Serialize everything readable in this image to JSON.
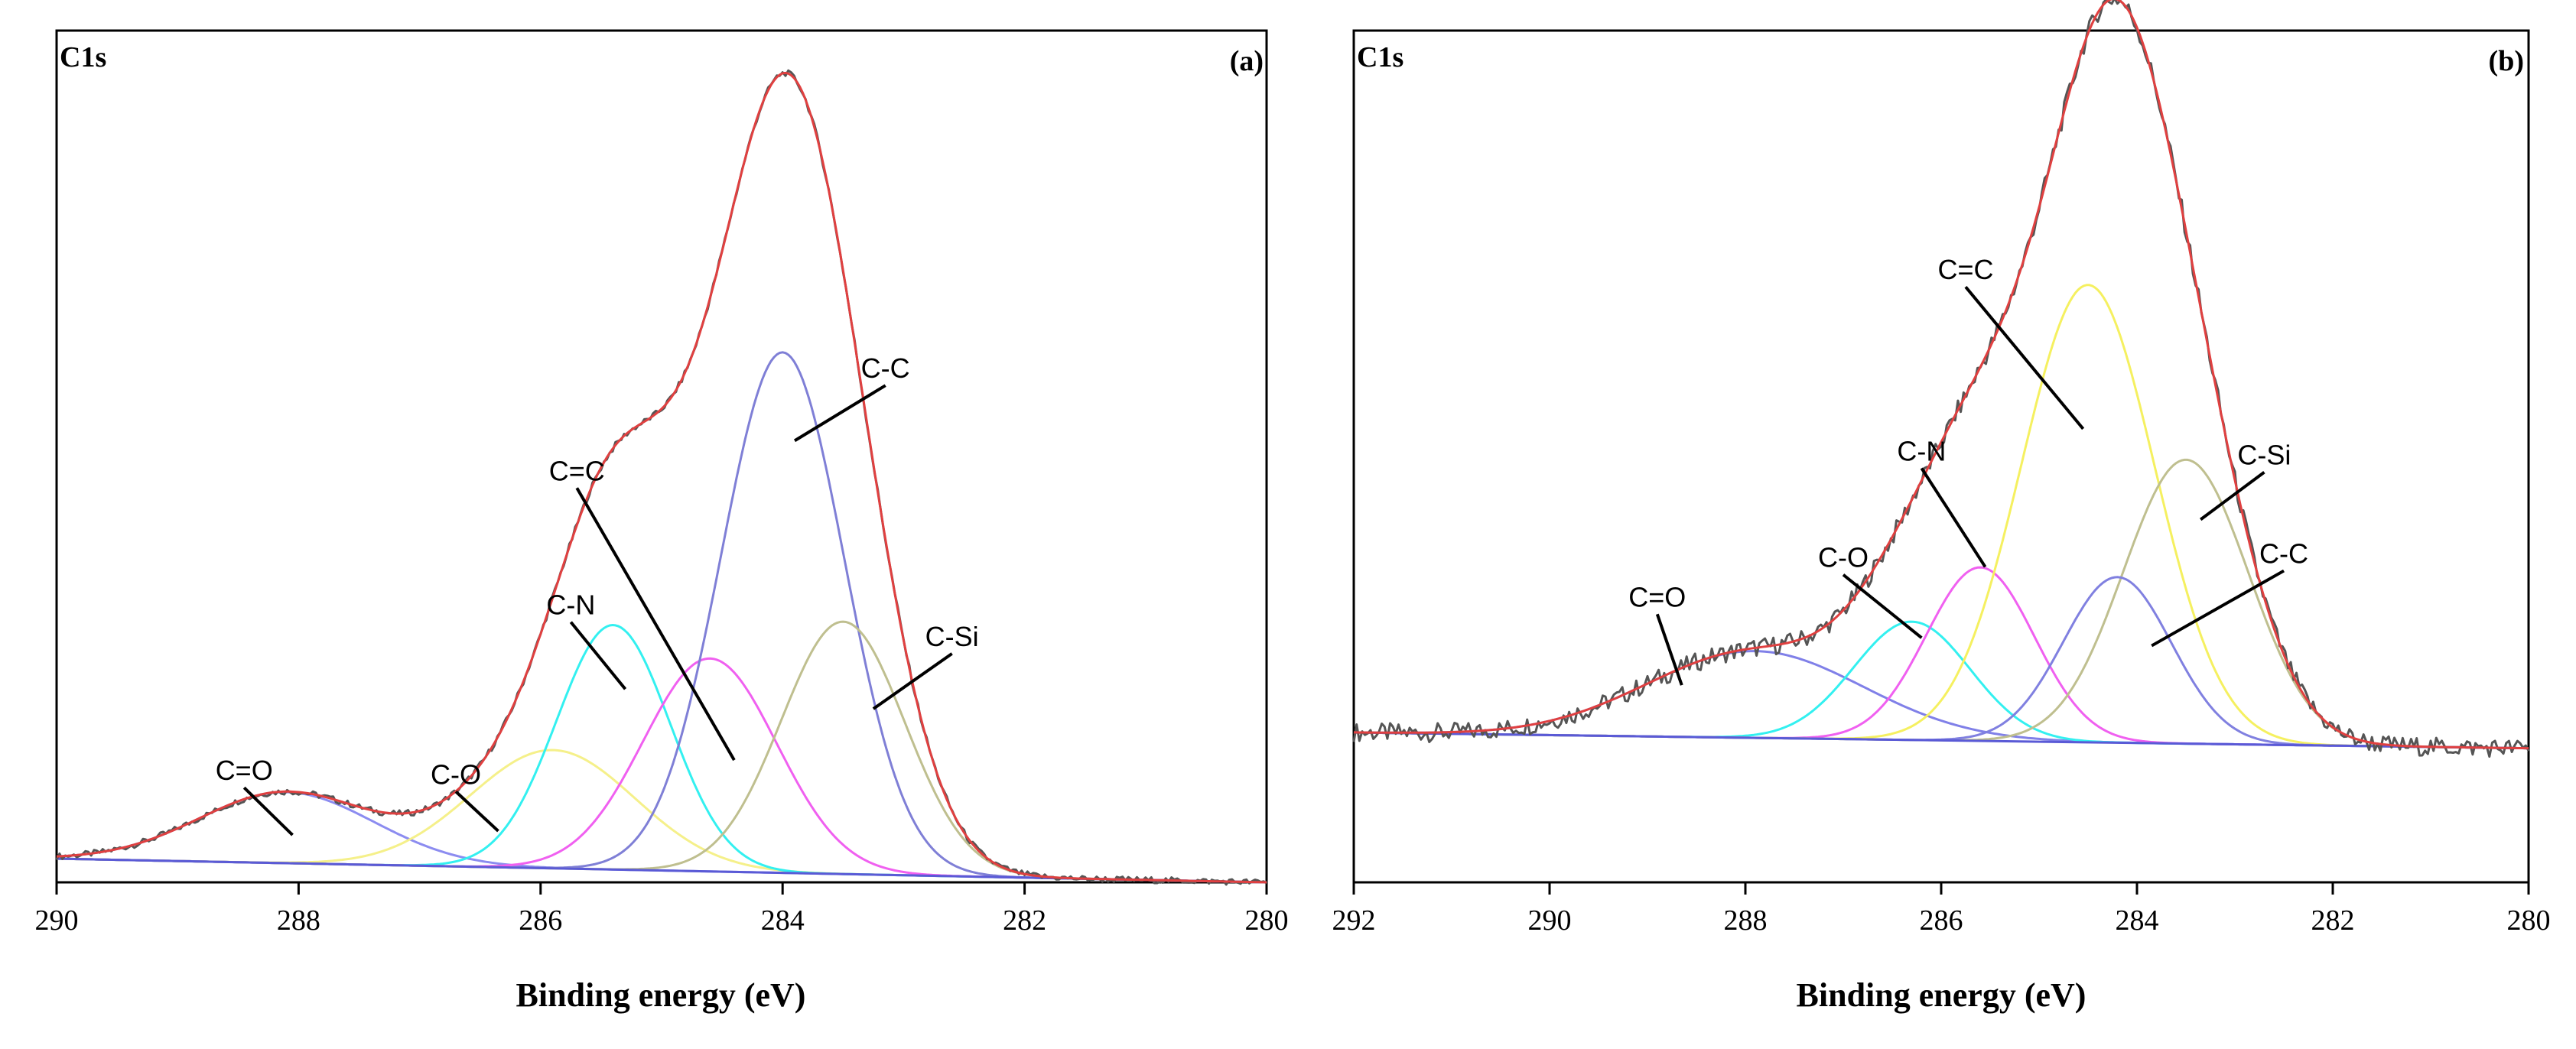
{
  "chart_data": [
    {
      "type": "line",
      "panel_label": "(a)",
      "spectrum_label": "C1s",
      "xlabel": "Binding energy (eV)",
      "ylabel": "",
      "xlim": [
        290,
        280
      ],
      "xticks": [
        290,
        288,
        286,
        284,
        282,
        280
      ],
      "ylim": [
        0,
        1.08
      ],
      "background": [
        [
          290,
          0.03
        ],
        [
          280,
          0.0
        ]
      ],
      "components": [
        {
          "name": "C=O",
          "center": 288.1,
          "fwhm": 1.7,
          "height": 0.09,
          "color": "#8c8cf0"
        },
        {
          "name": "C-O",
          "center": 285.9,
          "fwhm": 1.6,
          "height": 0.15,
          "color": "#f5f08a"
        },
        {
          "name": "C-N",
          "center": 285.4,
          "fwhm": 1.1,
          "height": 0.31,
          "color": "#33f0f0"
        },
        {
          "name": "C=C",
          "center": 284.6,
          "fwhm": 1.3,
          "height": 0.27,
          "color": "#f060f0"
        },
        {
          "name": "C-C",
          "center": 284.0,
          "fwhm": 1.2,
          "height": 0.66,
          "color": "#7f7fd6"
        },
        {
          "name": "C-Si",
          "center": 283.5,
          "fwhm": 1.2,
          "height": 0.32,
          "color": "#bfbf8f"
        }
      ],
      "annotations": [
        {
          "text": "C=O",
          "label_x": 288.45,
          "label_y": 0.12,
          "point_x": 288.05,
          "point_y": 0.06
        },
        {
          "text": "C-O",
          "label_x": 286.7,
          "label_y": 0.115,
          "point_x": 286.35,
          "point_y": 0.065
        },
        {
          "text": "C-N",
          "label_x": 285.75,
          "label_y": 0.33,
          "point_x": 285.3,
          "point_y": 0.245
        },
        {
          "text": "C=C",
          "label_x": 285.7,
          "label_y": 0.5,
          "point_x": 284.4,
          "point_y": 0.155
        },
        {
          "text": "C-C",
          "label_x": 283.15,
          "label_y": 0.63,
          "point_x": 283.9,
          "point_y": 0.56
        },
        {
          "text": "C-Si",
          "label_x": 282.6,
          "label_y": 0.29,
          "point_x": 283.25,
          "point_y": 0.22
        }
      ]
    },
    {
      "type": "line",
      "panel_label": "(b)",
      "spectrum_label": "C1s",
      "xlabel": "Binding energy (eV)",
      "ylabel": "",
      "xlim": [
        292,
        280
      ],
      "xticks": [
        292,
        290,
        288,
        286,
        284,
        282,
        280
      ],
      "ylim": [
        0,
        1.08
      ],
      "background": [
        [
          292,
          0.19
        ],
        [
          280,
          0.17
        ]
      ],
      "components": [
        {
          "name": "C=O",
          "center": 287.9,
          "fwhm": 2.6,
          "height": 0.11,
          "color": "#8080e8"
        },
        {
          "name": "C-O",
          "center": 286.3,
          "fwhm": 1.4,
          "height": 0.15,
          "color": "#33f0f0"
        },
        {
          "name": "C-N",
          "center": 285.6,
          "fwhm": 1.3,
          "height": 0.22,
          "color": "#f060f0"
        },
        {
          "name": "C=C",
          "center": 284.5,
          "fwhm": 1.6,
          "height": 0.58,
          "color": "#f5f060"
        },
        {
          "name": "C-Si",
          "center": 283.5,
          "fwhm": 1.5,
          "height": 0.36,
          "color": "#bfbf8f"
        },
        {
          "name": "C-C",
          "center": 284.2,
          "fwhm": 1.3,
          "height": 0.21,
          "color": "#8080e0"
        }
      ],
      "annotations": [
        {
          "text": "C=O",
          "label_x": 288.9,
          "label_y": 0.34,
          "point_x": 288.65,
          "point_y": 0.25
        },
        {
          "text": "C-O",
          "label_x": 287.0,
          "label_y": 0.39,
          "point_x": 286.2,
          "point_y": 0.31
        },
        {
          "text": "C-N",
          "label_x": 286.2,
          "label_y": 0.525,
          "point_x": 285.55,
          "point_y": 0.4
        },
        {
          "text": "C=C",
          "label_x": 285.75,
          "label_y": 0.755,
          "point_x": 284.55,
          "point_y": 0.575
        },
        {
          "text": "C-Si",
          "label_x": 282.7,
          "label_y": 0.52,
          "point_x": 283.35,
          "point_y": 0.46
        },
        {
          "text": "C-C",
          "label_x": 282.5,
          "label_y": 0.395,
          "point_x": 283.85,
          "point_y": 0.3
        }
      ]
    }
  ]
}
